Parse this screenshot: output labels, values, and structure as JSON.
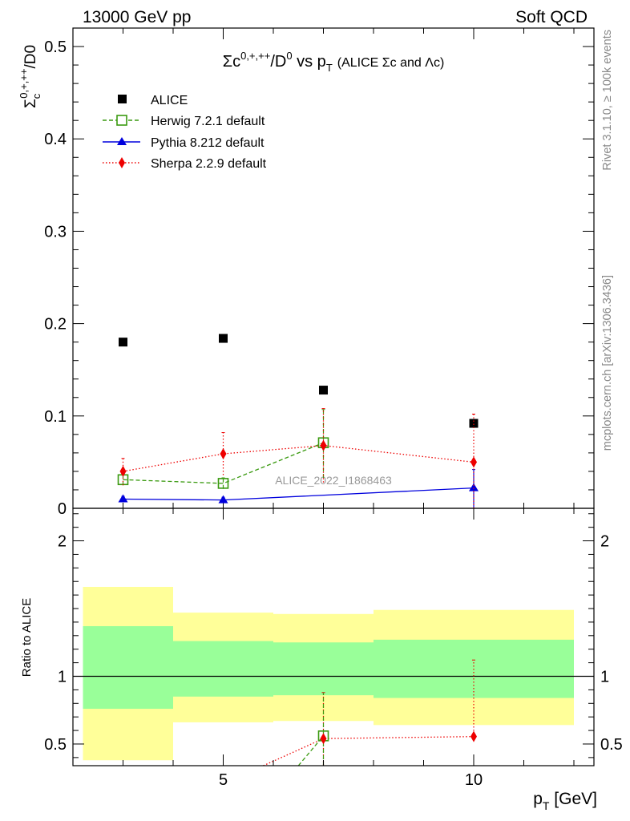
{
  "header": {
    "left": "13000 GeV pp",
    "right": "Soft QCD"
  },
  "side": {
    "rivet": "Rivet 3.1.10, ≥ 100k events",
    "mcplots": "mcplots.cern.ch [arXiv:1306.3436]"
  },
  "colors": {
    "alice": "#000000",
    "herwig": "#3a9a10",
    "pythia": "#0000dd",
    "sherpa": "#ee0000",
    "band_outer": "#ffff99",
    "band_inner": "#99ff99"
  },
  "chart_data": [
    {
      "type": "scatter",
      "title": "Σc0,+,++/D0 vs pT (ALICE Σc and Λc)",
      "title_main": "Σc",
      "title_sup": "0,+,++",
      "title_mid": "/D",
      "title_sup2": "0",
      "title_vs": " vs p",
      "title_sub": "T",
      "title_small": "(ALICE Σc and Λc)",
      "ylabel_sym": "Σ",
      "ylabel_sub": "c",
      "ylabel_sup": "0,+,++",
      "ylabel_rest": "/D0",
      "watermark": "ALICE_2022_I1868463",
      "xlim": [
        2,
        12.4
      ],
      "ylim": [
        0,
        0.52
      ],
      "yticks": [
        0,
        0.1,
        0.2,
        0.3,
        0.4,
        0.5
      ],
      "ytick_labels": [
        "0",
        "0.1",
        "0.2",
        "0.3",
        "0.4",
        "0.5"
      ],
      "legend": [
        "ALICE",
        "Herwig 7.2.1 default",
        "Pythia 8.212 default",
        "Sherpa 2.2.9 default"
      ],
      "series": [
        {
          "name": "ALICE",
          "style": "square-filled",
          "x": [
            3,
            5,
            7,
            10
          ],
          "y": [
            0.18,
            0.184,
            0.128,
            0.092
          ]
        },
        {
          "name": "Herwig 7.2.1 default",
          "style": "square-open-dashed",
          "x": [
            3,
            5,
            7
          ],
          "y": [
            0.031,
            0.027,
            0.071
          ],
          "err_lo": [
            0.006,
            0.006,
            0.038
          ],
          "err_hi": [
            0.006,
            0.006,
            0.036
          ]
        },
        {
          "name": "Pythia 8.212 default",
          "style": "triangle-solid",
          "x": [
            3,
            5,
            10
          ],
          "y": [
            0.01,
            0.009,
            0.022
          ],
          "err_lo": [
            0.003,
            0.003,
            0.022
          ],
          "err_hi": [
            0.003,
            0.003,
            0.02
          ]
        },
        {
          "name": "Sherpa 2.2.9 default",
          "style": "diamond-dotted",
          "x": [
            3,
            5,
            7,
            10
          ],
          "y": [
            0.04,
            0.059,
            0.068,
            0.05
          ],
          "err_lo": [
            0.015,
            0.023,
            0.04,
            0.05
          ],
          "err_hi": [
            0.014,
            0.023,
            0.04,
            0.052
          ]
        }
      ]
    },
    {
      "type": "scatter",
      "ylabel": "Ratio to ALICE",
      "xlabel": "p",
      "xlabel_sub": "T",
      "xlabel_unit": " [GeV]",
      "xlim": [
        2,
        12.4
      ],
      "ylim": [
        0.34,
        2.24
      ],
      "yticks": [
        0.5,
        1,
        2
      ],
      "ytick_labels": [
        "0.5",
        "1",
        "2"
      ],
      "xticks": [
        5,
        10
      ],
      "xtick_labels": [
        "5",
        "10"
      ],
      "bands": [
        {
          "x0": 2.2,
          "x1": 4,
          "outer": [
            0.38,
            1.66
          ],
          "inner": [
            0.76,
            1.37
          ]
        },
        {
          "x0": 4,
          "x1": 6,
          "outer": [
            0.66,
            1.47
          ],
          "inner": [
            0.85,
            1.26
          ]
        },
        {
          "x0": 6,
          "x1": 8,
          "outer": [
            0.67,
            1.46
          ],
          "inner": [
            0.86,
            1.25
          ]
        },
        {
          "x0": 8,
          "x1": 12,
          "outer": [
            0.64,
            1.49
          ],
          "inner": [
            0.84,
            1.27
          ]
        }
      ],
      "series": [
        {
          "name": "Herwig 7.2.1 default",
          "x": [
            6.5,
            7
          ],
          "y": [
            0.34,
            0.56
          ]
        },
        {
          "name": "Sherpa 2.2.9 default",
          "x": [
            5.8,
            7,
            10
          ],
          "y": [
            0.34,
            0.54,
            0.555
          ],
          "err_x": [
            7,
            10
          ],
          "err_lo": [
            0.32,
            0.55
          ],
          "err_hi": [
            0.88,
            1.12
          ]
        }
      ]
    }
  ]
}
